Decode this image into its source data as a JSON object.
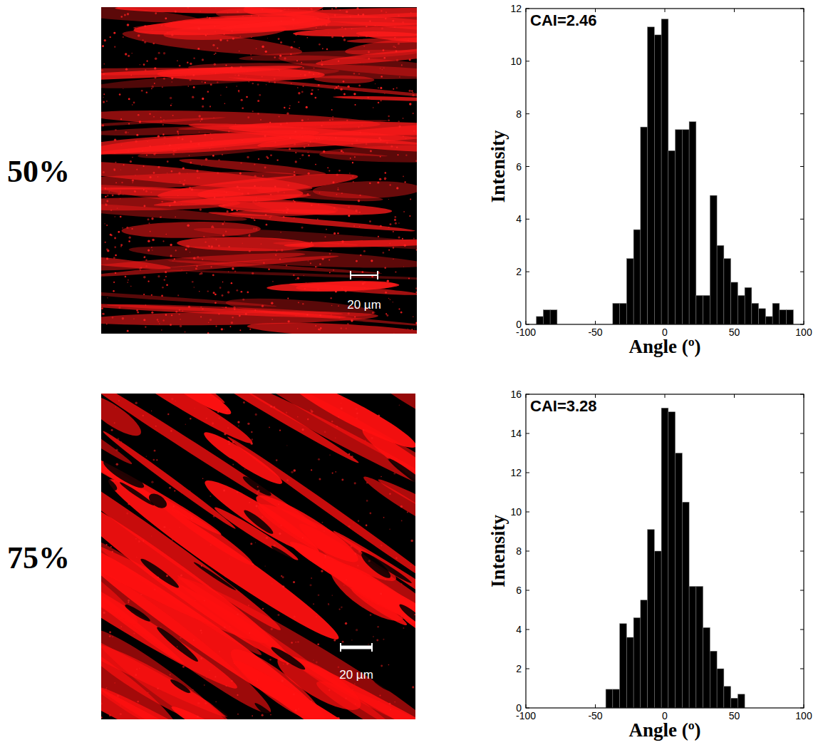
{
  "panels": [
    {
      "label": "50%",
      "scale_bar": "20 µm"
    },
    {
      "label": "75%",
      "scale_bar": "20 µm"
    }
  ],
  "chart_data": [
    {
      "type": "histogram",
      "annotations": [
        "CAI=2.46"
      ],
      "xlabel": "Angle (º)",
      "ylabel": "Intensity",
      "bins": [
        -92.5,
        -87.5,
        -82.5,
        -77.5,
        -72.5,
        -67.5,
        -62.5,
        -57.5,
        -52.5,
        -47.5,
        -42.5,
        -37.5,
        -32.5,
        -27.5,
        -22.5,
        -17.5,
        -12.5,
        -7.5,
        -2.5,
        2.5,
        7.5,
        12.5,
        17.5,
        22.5,
        27.5,
        32.5,
        37.5,
        42.5,
        47.5,
        52.5,
        57.5,
        62.5,
        67.5,
        72.5,
        77.5,
        82.5,
        87.5,
        92.5
      ],
      "values": [
        0.3,
        0.55,
        0.55,
        0,
        0,
        0,
        0,
        0,
        0,
        0,
        0,
        0.8,
        0.8,
        2.5,
        3.6,
        7.5,
        11.3,
        11.0,
        11.6,
        6.6,
        7.4,
        7.4,
        7.7,
        1.1,
        1.1,
        4.9,
        3.0,
        2.5,
        1.6,
        1.1,
        1.4,
        0.8,
        0.6,
        0.3,
        0.8,
        0.55,
        0.55
      ],
      "xlim": [
        -100,
        100
      ],
      "ylim": [
        0,
        12
      ],
      "xticks": [
        -100,
        -50,
        0,
        50,
        100
      ],
      "yticks": [
        0,
        2,
        4,
        6,
        8,
        10,
        12
      ],
      "color": "#000000"
    },
    {
      "type": "histogram",
      "annotations": [
        "CAI=3.28"
      ],
      "xlabel": "Angle (º)",
      "ylabel": "Intensity",
      "bins": [
        -42.5,
        -37.5,
        -32.5,
        -27.5,
        -22.5,
        -17.5,
        -12.5,
        -7.5,
        -2.5,
        2.5,
        7.5,
        12.5,
        17.5,
        22.5,
        27.5,
        32.5,
        37.5,
        42.5,
        47.5,
        52.5,
        57.5
      ],
      "values": [
        0.95,
        0.95,
        4.3,
        3.6,
        4.6,
        5.5,
        9.1,
        8.0,
        15.3,
        15.1,
        13.0,
        10.5,
        6.2,
        6.2,
        4.1,
        2.9,
        2.0,
        1.1,
        0.5,
        0.7
      ],
      "xlim": [
        -100,
        100
      ],
      "ylim": [
        0,
        16
      ],
      "xticks": [
        -100,
        -50,
        0,
        50,
        100
      ],
      "yticks": [
        0,
        2,
        4,
        6,
        8,
        10,
        12,
        14,
        16
      ],
      "color": "#000000"
    }
  ]
}
